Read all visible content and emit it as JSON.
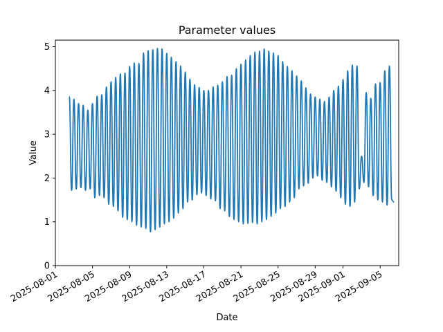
{
  "chart_data": {
    "type": "line",
    "title": "Parameter values",
    "xlabel": "Date",
    "ylabel": "Value",
    "x_tick_labels": [
      "2025-08-01",
      "2025-08-05",
      "2025-08-09",
      "2025-08-13",
      "2025-08-17",
      "2025-08-21",
      "2025-08-25",
      "2025-08-29",
      "2025-09-01",
      "2025-09-05"
    ],
    "x_ticks": [
      "2025-08-01",
      "2025-08-05",
      "2025-08-09",
      "2025-08-13",
      "2025-08-17",
      "2025-08-21",
      "2025-08-25",
      "2025-08-29",
      "2025-09-01",
      "2025-09-05"
    ],
    "y_ticks": [
      0,
      1,
      2,
      3,
      4,
      5
    ],
    "xlim": [
      "2025-08-01T00:00",
      "2025-09-07T00:00"
    ],
    "ylim": [
      0,
      5.15
    ],
    "grid": false,
    "series": [
      {
        "color": "#1f77b4",
        "cycle_hours": 12,
        "x_start": "2025-08-02T12:00",
        "x_end": "2025-09-06T12:00",
        "peaks": [
          [
            "2025-08-02T12:00",
            3.86
          ],
          [
            "2025-08-03T00:00",
            3.8
          ],
          [
            "2025-08-03T12:00",
            3.7
          ],
          [
            "2025-08-04T00:00",
            3.66
          ],
          [
            "2025-08-04T12:00",
            3.55
          ],
          [
            "2025-08-05T00:00",
            3.7
          ],
          [
            "2025-08-05T12:00",
            3.87
          ],
          [
            "2025-08-06T00:00",
            3.9
          ],
          [
            "2025-08-06T12:00",
            4.08
          ],
          [
            "2025-08-07T00:00",
            4.2
          ],
          [
            "2025-08-07T12:00",
            4.3
          ],
          [
            "2025-08-08T00:00",
            4.38
          ],
          [
            "2025-08-08T12:00",
            4.4
          ],
          [
            "2025-08-09T00:00",
            4.55
          ],
          [
            "2025-08-09T12:00",
            4.63
          ],
          [
            "2025-08-10T00:00",
            4.62
          ],
          [
            "2025-08-10T12:00",
            4.86
          ],
          [
            "2025-08-11T00:00",
            4.91
          ],
          [
            "2025-08-11T12:00",
            4.93
          ],
          [
            "2025-08-12T00:00",
            4.96
          ],
          [
            "2025-08-12T12:00",
            4.95
          ],
          [
            "2025-08-13T00:00",
            4.85
          ],
          [
            "2025-08-13T12:00",
            4.76
          ],
          [
            "2025-08-14T00:00",
            4.66
          ],
          [
            "2025-08-14T12:00",
            4.56
          ],
          [
            "2025-08-15T00:00",
            4.42
          ],
          [
            "2025-08-15T12:00",
            4.26
          ],
          [
            "2025-08-16T00:00",
            4.13
          ],
          [
            "2025-08-16T12:00",
            4.07
          ],
          [
            "2025-08-17T00:00",
            4.0
          ],
          [
            "2025-08-17T12:00",
            4.0
          ],
          [
            "2025-08-18T00:00",
            4.08
          ],
          [
            "2025-08-18T12:00",
            4.12
          ],
          [
            "2025-08-19T00:00",
            4.2
          ],
          [
            "2025-08-19T12:00",
            4.32
          ],
          [
            "2025-08-20T00:00",
            4.35
          ],
          [
            "2025-08-20T12:00",
            4.5
          ],
          [
            "2025-08-21T00:00",
            4.6
          ],
          [
            "2025-08-21T12:00",
            4.7
          ],
          [
            "2025-08-22T00:00",
            4.8
          ],
          [
            "2025-08-22T12:00",
            4.88
          ],
          [
            "2025-08-23T00:00",
            4.9
          ],
          [
            "2025-08-23T12:00",
            4.95
          ],
          [
            "2025-08-24T00:00",
            4.9
          ],
          [
            "2025-08-24T12:00",
            4.86
          ],
          [
            "2025-08-25T00:00",
            4.8
          ],
          [
            "2025-08-25T12:00",
            4.66
          ],
          [
            "2025-08-26T00:00",
            4.55
          ],
          [
            "2025-08-26T12:00",
            4.45
          ],
          [
            "2025-08-27T00:00",
            4.33
          ],
          [
            "2025-08-27T12:00",
            4.22
          ],
          [
            "2025-08-28T00:00",
            4.06
          ],
          [
            "2025-08-28T12:00",
            3.92
          ],
          [
            "2025-08-29T00:00",
            3.85
          ],
          [
            "2025-08-29T12:00",
            3.8
          ],
          [
            "2025-08-30T00:00",
            3.75
          ],
          [
            "2025-08-30T12:00",
            3.85
          ],
          [
            "2025-08-31T00:00",
            4.0
          ],
          [
            "2025-08-31T12:00",
            4.1
          ],
          [
            "2025-09-01T00:00",
            4.25
          ],
          [
            "2025-09-01T12:00",
            4.45
          ],
          [
            "2025-09-02T00:00",
            4.58
          ],
          [
            "2025-09-02T12:00",
            4.56
          ]
        ],
        "troughs": [
          [
            "2025-08-02T18:00",
            1.72
          ],
          [
            "2025-08-03T06:00",
            1.75
          ],
          [
            "2025-08-03T18:00",
            1.78
          ],
          [
            "2025-08-04T06:00",
            1.72
          ],
          [
            "2025-08-04T18:00",
            1.75
          ],
          [
            "2025-08-05T06:00",
            1.55
          ],
          [
            "2025-08-05T18:00",
            1.6
          ],
          [
            "2025-08-06T06:00",
            1.55
          ],
          [
            "2025-08-06T18:00",
            1.4
          ],
          [
            "2025-08-07T06:00",
            1.35
          ],
          [
            "2025-08-07T18:00",
            1.25
          ],
          [
            "2025-08-08T06:00",
            1.1
          ],
          [
            "2025-08-08T18:00",
            1.05
          ],
          [
            "2025-08-09T06:00",
            1.0
          ],
          [
            "2025-08-09T18:00",
            0.92
          ],
          [
            "2025-08-10T06:00",
            0.88
          ],
          [
            "2025-08-10T18:00",
            0.85
          ],
          [
            "2025-08-11T06:00",
            0.77
          ],
          [
            "2025-08-11T18:00",
            0.82
          ],
          [
            "2025-08-12T06:00",
            0.88
          ],
          [
            "2025-08-12T18:00",
            0.95
          ],
          [
            "2025-08-13T06:00",
            1.0
          ],
          [
            "2025-08-13T18:00",
            1.08
          ],
          [
            "2025-08-14T06:00",
            1.2
          ],
          [
            "2025-08-14T18:00",
            1.3
          ],
          [
            "2025-08-15T06:00",
            1.45
          ],
          [
            "2025-08-15T18:00",
            1.5
          ],
          [
            "2025-08-16T06:00",
            1.62
          ],
          [
            "2025-08-16T18:00",
            1.66
          ],
          [
            "2025-08-17T06:00",
            1.6
          ],
          [
            "2025-08-17T18:00",
            1.52
          ],
          [
            "2025-08-18T06:00",
            1.48
          ],
          [
            "2025-08-18T18:00",
            1.3
          ],
          [
            "2025-08-19T06:00",
            1.25
          ],
          [
            "2025-08-19T18:00",
            1.12
          ],
          [
            "2025-08-20T06:00",
            1.05
          ],
          [
            "2025-08-20T18:00",
            1.0
          ],
          [
            "2025-08-21T06:00",
            0.95
          ],
          [
            "2025-08-21T18:00",
            0.96
          ],
          [
            "2025-08-22T06:00",
            0.98
          ],
          [
            "2025-08-22T18:00",
            0.95
          ],
          [
            "2025-08-23T06:00",
            1.0
          ],
          [
            "2025-08-23T18:00",
            1.05
          ],
          [
            "2025-08-24T06:00",
            1.12
          ],
          [
            "2025-08-24T18:00",
            1.2
          ],
          [
            "2025-08-25T06:00",
            1.3
          ],
          [
            "2025-08-25T18:00",
            1.35
          ],
          [
            "2025-08-26T06:00",
            1.45
          ],
          [
            "2025-08-26T18:00",
            1.55
          ],
          [
            "2025-08-27T06:00",
            1.75
          ],
          [
            "2025-08-27T18:00",
            1.82
          ],
          [
            "2025-08-28T06:00",
            1.88
          ],
          [
            "2025-08-28T18:00",
            2.0
          ],
          [
            "2025-08-29T06:00",
            2.05
          ],
          [
            "2025-08-29T18:00",
            1.95
          ],
          [
            "2025-08-30T06:00",
            1.9
          ],
          [
            "2025-08-30T18:00",
            1.8
          ],
          [
            "2025-08-31T06:00",
            1.7
          ],
          [
            "2025-08-31T18:00",
            1.55
          ],
          [
            "2025-09-01T06:00",
            1.4
          ],
          [
            "2025-09-01T18:00",
            1.35
          ],
          [
            "2025-09-02T06:00",
            1.45
          ]
        ]
      }
    ]
  }
}
